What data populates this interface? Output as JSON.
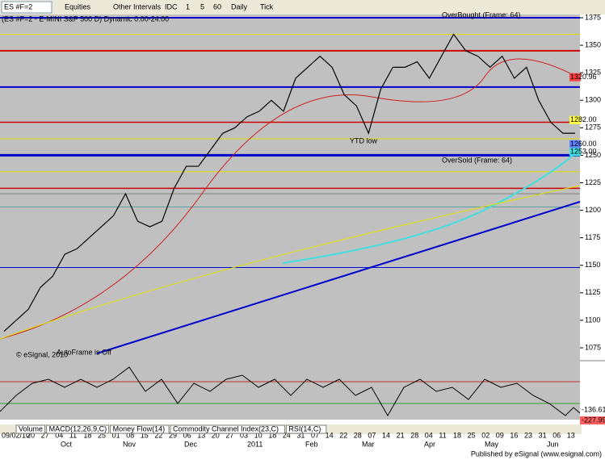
{
  "toolbar": {
    "symbol": "ES #F=2",
    "items": [
      "Equities",
      "Other Intervals",
      "IDC",
      "1",
      "5",
      "60",
      "Daily",
      "Tick"
    ]
  },
  "chart": {
    "title": "(ES #F=2 - E-MINI S&P 500 D) Dynamic 0:00-24:00",
    "ylim": [
      1075,
      1375
    ],
    "yticks": [
      1375,
      1350,
      1325,
      1300,
      1275,
      1250,
      1225,
      1200,
      1175,
      1150,
      1125,
      1100,
      1075
    ],
    "price": [
      1090,
      1100,
      1110,
      1130,
      1140,
      1160,
      1165,
      1175,
      1185,
      1195,
      1215,
      1190,
      1185,
      1190,
      1220,
      1240,
      1240,
      1255,
      1270,
      1275,
      1285,
      1290,
      1300,
      1290,
      1320,
      1330,
      1340,
      1330,
      1305,
      1295,
      1270,
      1310,
      1330,
      1330,
      1335,
      1320,
      1340,
      1360,
      1345,
      1340,
      1330,
      1340,
      1320,
      1330,
      1300,
      1280,
      1270,
      1270
    ],
    "levels": [
      {
        "value": 1320.96,
        "label": "1320.96"
      },
      {
        "value": 1282,
        "label": "1282.00"
      },
      {
        "value": 1260,
        "label": "1260.00"
      },
      {
        "value": 1253,
        "label": "1253.00"
      }
    ],
    "annotations": [
      "OverBought (Frame: 64)",
      "OverSold (Frame: 64)",
      "YTD low",
      "AutoFrame is Off",
      "© eSignal, 2010"
    ]
  },
  "oscillator": {
    "labels": [
      "-136.61",
      "-227.99"
    ]
  },
  "dates": [
    "09/02/10",
    "20",
    "27",
    "04",
    "11",
    "18",
    "25",
    "01",
    "08",
    "15",
    "22",
    "29",
    "06",
    "13",
    "20",
    "27",
    "03",
    "10",
    "18",
    "24",
    "31",
    "07",
    "14",
    "22",
    "28",
    "07",
    "14",
    "21",
    "28",
    "04",
    "11",
    "18",
    "25",
    "02",
    "09",
    "16",
    "23",
    "31",
    "06",
    "13"
  ],
  "months": [
    "Oct",
    "Nov",
    "Dec",
    "2011",
    "Feb",
    "Mar",
    "Apr",
    "May",
    "Jun"
  ],
  "tabs": [
    "Volume",
    "MACD(12,26,9,C)",
    "Money Flow(14)",
    "Commodity Channel Index(23,C)",
    "RSI(14,C)"
  ],
  "footer": "Published by eSignal (www.esignal.com)"
}
